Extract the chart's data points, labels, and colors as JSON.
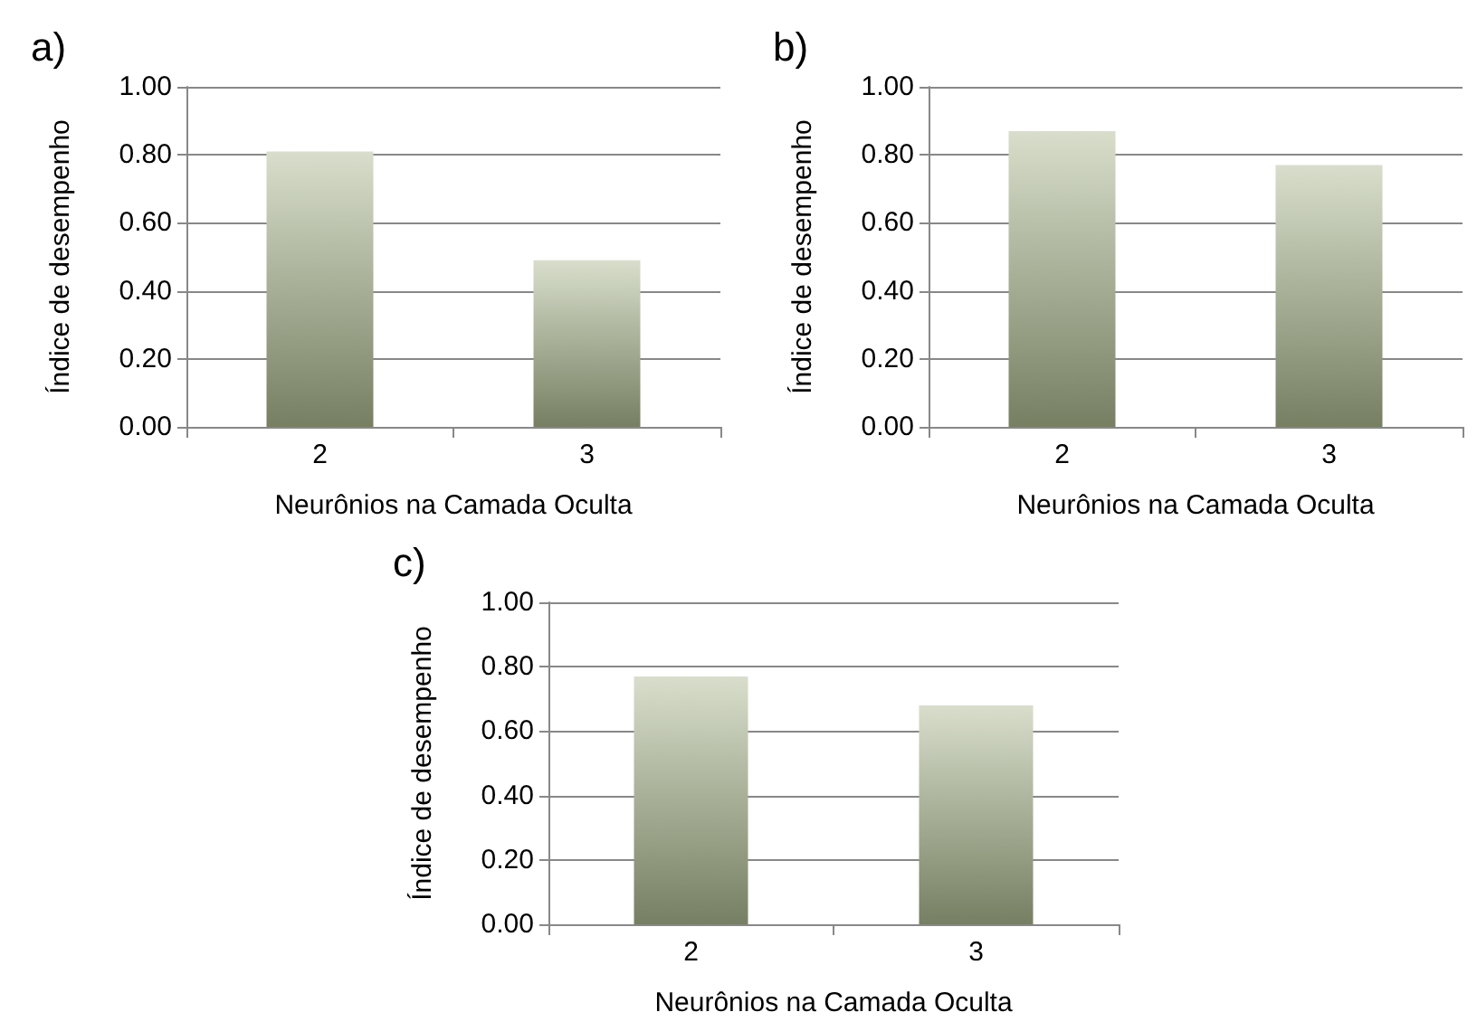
{
  "chart_data": [
    {
      "type": "bar",
      "title": "a)",
      "xlabel": "Neurônios na Camada Oculta",
      "ylabel": "Índice de desempenho",
      "categories": [
        "2",
        "3"
      ],
      "values": [
        0.81,
        0.49
      ],
      "color": "#a9b68c",
      "ylim": [
        0,
        1
      ],
      "yticks": [
        {
          "value": 0,
          "label": "0.00"
        },
        {
          "value": 0.2,
          "label": "0.20"
        },
        {
          "value": 0.4,
          "label": "0.40"
        },
        {
          "value": 0.6,
          "label": "0.60"
        },
        {
          "value": 0.8,
          "label": "0.80"
        },
        {
          "value": 1,
          "label": "1.00"
        }
      ],
      "grid": "y"
    },
    {
      "type": "bar",
      "title": "b)",
      "xlabel": "Neurônios na Camada Oculta",
      "ylabel": "Índice de desempenho",
      "categories": [
        "2",
        "3"
      ],
      "values": [
        0.87,
        0.77
      ],
      "color": "#a9b68c",
      "ylim": [
        0,
        1
      ],
      "yticks": [
        {
          "value": 0,
          "label": "0.00"
        },
        {
          "value": 0.2,
          "label": "0.20"
        },
        {
          "value": 0.4,
          "label": "0.40"
        },
        {
          "value": 0.6,
          "label": "0.60"
        },
        {
          "value": 0.8,
          "label": "0.80"
        },
        {
          "value": 1,
          "label": "1.00"
        }
      ],
      "grid": "y"
    },
    {
      "type": "bar",
      "title": "c)",
      "xlabel": "Neurônios na Camada Oculta",
      "ylabel": "Índice de desempenho",
      "categories": [
        "2",
        "3"
      ],
      "values": [
        0.77,
        0.68
      ],
      "color": "#a9b68c",
      "ylim": [
        0,
        1
      ],
      "yticks": [
        {
          "value": 0,
          "label": "0.00"
        },
        {
          "value": 0.2,
          "label": "0.20"
        },
        {
          "value": 0.4,
          "label": "0.40"
        },
        {
          "value": 0.6,
          "label": "0.60"
        },
        {
          "value": 0.8,
          "label": "0.80"
        },
        {
          "value": 1,
          "label": "1.00"
        }
      ],
      "grid": "y"
    }
  ]
}
